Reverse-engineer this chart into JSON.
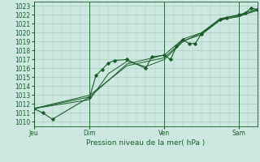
{
  "title": "Pression niveau de la mer( hPa )",
  "xlim": [
    0,
    72
  ],
  "ylim": [
    1009.5,
    1023.5
  ],
  "yticks": [
    1010,
    1011,
    1012,
    1013,
    1014,
    1015,
    1016,
    1017,
    1018,
    1019,
    1020,
    1021,
    1022,
    1023
  ],
  "xtick_positions": [
    0,
    18,
    42,
    66
  ],
  "xtick_labels": [
    "Jeu",
    "Dim",
    "Ven",
    "Sam"
  ],
  "vlines": [
    0,
    18,
    42,
    66
  ],
  "bg_color": "#cce8e0",
  "grid_color": "#aaccbb",
  "line_color": "#1a5c2a",
  "lines": [
    [
      0,
      1011.5,
      3,
      1011.0,
      6,
      1010.3,
      18,
      1012.8,
      20,
      1015.2,
      22,
      1015.9,
      24,
      1016.6,
      26,
      1016.9,
      30,
      1017.0,
      36,
      1016.0,
      38,
      1017.3,
      42,
      1017.5,
      44,
      1017.0,
      46,
      1018.5,
      48,
      1019.2,
      50,
      1018.8,
      52,
      1018.8,
      54,
      1019.9,
      60,
      1021.5,
      62,
      1021.7,
      66,
      1022.0,
      68,
      1022.2,
      70,
      1022.8,
      72,
      1022.6
    ],
    [
      0,
      1011.5,
      18,
      1012.5,
      24,
      1015.4,
      30,
      1016.8,
      36,
      1016.2,
      42,
      1017.0,
      48,
      1019.0,
      54,
      1020.0,
      60,
      1021.5,
      66,
      1021.8,
      72,
      1022.6
    ],
    [
      0,
      1011.5,
      18,
      1012.8,
      30,
      1016.5,
      42,
      1017.5,
      48,
      1019.3,
      54,
      1020.0,
      60,
      1021.6,
      66,
      1022.0,
      72,
      1022.7
    ],
    [
      0,
      1011.5,
      18,
      1013.0,
      30,
      1016.3,
      42,
      1017.2,
      48,
      1019.1,
      54,
      1019.8,
      60,
      1021.4,
      66,
      1021.9,
      72,
      1022.5
    ]
  ]
}
